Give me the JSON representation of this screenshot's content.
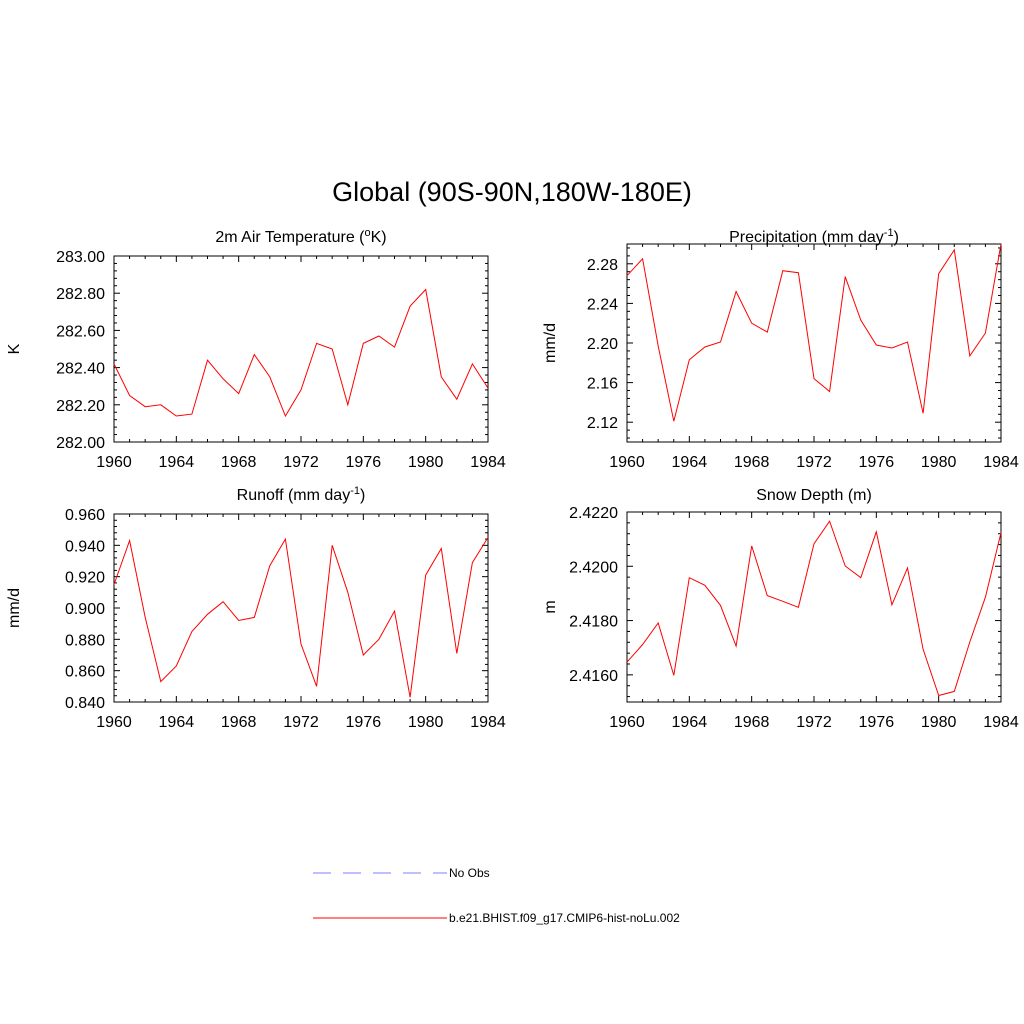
{
  "title": "Global (90S-90N,180W-180E)",
  "legend": {
    "obs_label": "No Obs",
    "model_label": "b.e21.BHIST.f09_g17.CMIP6-hist-noLu.002",
    "obs_color": "#9999ff",
    "model_color": "#ff0000"
  },
  "chart_data": [
    {
      "type": "line",
      "title": "2m Air Temperature (",
      "title_sup": "o",
      "title_tail": "K)",
      "ylabel": "K",
      "xlim": [
        1960,
        1984
      ],
      "ylim": [
        282.0,
        283.0
      ],
      "xticks": [
        "1960",
        "1964",
        "1968",
        "1972",
        "1976",
        "1980",
        "1984"
      ],
      "yticks": [
        "282.00",
        "282.20",
        "282.40",
        "282.60",
        "282.80",
        "283.00"
      ],
      "x": [
        1960,
        1961,
        1962,
        1963,
        1964,
        1965,
        1966,
        1967,
        1968,
        1969,
        1970,
        1971,
        1972,
        1973,
        1974,
        1975,
        1976,
        1977,
        1978,
        1979,
        1980,
        1981,
        1982,
        1983,
        1984
      ],
      "series": [
        {
          "name": "b.e21.BHIST.f09_g17.CMIP6-hist-noLu.002",
          "color": "#ff0000",
          "values": [
            282.42,
            282.25,
            282.19,
            282.2,
            282.14,
            282.15,
            282.44,
            282.34,
            282.26,
            282.47,
            282.35,
            282.14,
            282.28,
            282.53,
            282.5,
            282.2,
            282.53,
            282.57,
            282.51,
            282.73,
            282.82,
            282.35,
            282.23,
            282.42,
            282.29
          ]
        }
      ]
    },
    {
      "type": "line",
      "title": "Precipitation (mm day",
      "title_sup": "-1",
      "title_tail": ")",
      "ylabel": "mm/d",
      "xlim": [
        1960,
        1984
      ],
      "ylim": [
        2.1,
        2.3
      ],
      "xticks": [
        "1960",
        "1964",
        "1968",
        "1972",
        "1976",
        "1980",
        "1984"
      ],
      "yticks": [
        "2.12",
        "2.16",
        "2.20",
        "2.24",
        "2.28"
      ],
      "x": [
        1960,
        1961,
        1962,
        1963,
        1964,
        1965,
        1966,
        1967,
        1968,
        1969,
        1970,
        1971,
        1972,
        1973,
        1974,
        1975,
        1976,
        1977,
        1978,
        1979,
        1980,
        1981,
        1982,
        1983,
        1984
      ],
      "series": [
        {
          "name": "b.e21.BHIST.f09_g17.CMIP6-hist-noLu.002",
          "color": "#ff0000",
          "values": [
            2.268,
            2.285,
            2.197,
            2.121,
            2.183,
            2.196,
            2.201,
            2.252,
            2.22,
            2.211,
            2.273,
            2.271,
            2.164,
            2.151,
            2.267,
            2.223,
            2.198,
            2.195,
            2.201,
            2.129,
            2.27,
            2.294,
            2.187,
            2.21,
            2.3
          ]
        }
      ]
    },
    {
      "type": "line",
      "title": "Runoff (mm day",
      "title_sup": "-1",
      "title_tail": ")",
      "ylabel": "mm/d",
      "xlim": [
        1960,
        1984
      ],
      "ylim": [
        0.84,
        0.96
      ],
      "xticks": [
        "1960",
        "1964",
        "1968",
        "1972",
        "1976",
        "1980",
        "1984"
      ],
      "yticks": [
        "0.840",
        "0.860",
        "0.880",
        "0.900",
        "0.920",
        "0.940",
        "0.960"
      ],
      "x": [
        1960,
        1961,
        1962,
        1963,
        1964,
        1965,
        1966,
        1967,
        1968,
        1969,
        1970,
        1971,
        1972,
        1973,
        1974,
        1975,
        1976,
        1977,
        1978,
        1979,
        1980,
        1981,
        1982,
        1983,
        1984
      ],
      "series": [
        {
          "name": "b.e21.BHIST.f09_g17.CMIP6-hist-noLu.002",
          "color": "#ff0000",
          "values": [
            0.915,
            0.943,
            0.894,
            0.853,
            0.863,
            0.885,
            0.896,
            0.904,
            0.892,
            0.894,
            0.927,
            0.944,
            0.877,
            0.85,
            0.94,
            0.91,
            0.87,
            0.88,
            0.898,
            0.843,
            0.921,
            0.938,
            0.871,
            0.929,
            0.945
          ]
        }
      ]
    },
    {
      "type": "line",
      "title": "Snow Depth (m)",
      "title_sup": "",
      "title_tail": "",
      "ylabel": "m",
      "xlim": [
        1960,
        1984
      ],
      "ylim": [
        2.415,
        2.422
      ],
      "xticks": [
        "1960",
        "1964",
        "1968",
        "1972",
        "1976",
        "1980",
        "1984"
      ],
      "yticks": [
        "2.4160",
        "2.4180",
        "2.4200",
        "2.4220"
      ],
      "x": [
        1960,
        1961,
        1962,
        1963,
        1964,
        1965,
        1966,
        1967,
        1968,
        1969,
        1970,
        1971,
        1972,
        1973,
        1974,
        1975,
        1976,
        1977,
        1978,
        1979,
        1980,
        1981,
        1982,
        1983,
        1984
      ],
      "series": [
        {
          "name": "b.e21.BHIST.f09_g17.CMIP6-hist-noLu.002",
          "color": "#ff0000",
          "values": [
            2.41647,
            2.41712,
            2.41791,
            2.41598,
            2.41958,
            2.4193,
            2.41856,
            2.41706,
            2.42075,
            2.41892,
            2.41871,
            2.41849,
            2.42083,
            2.42166,
            2.42001,
            2.41958,
            2.42127,
            2.41858,
            2.41994,
            2.41694,
            2.41524,
            2.41539,
            2.41721,
            2.41886,
            2.42124
          ]
        }
      ]
    }
  ]
}
